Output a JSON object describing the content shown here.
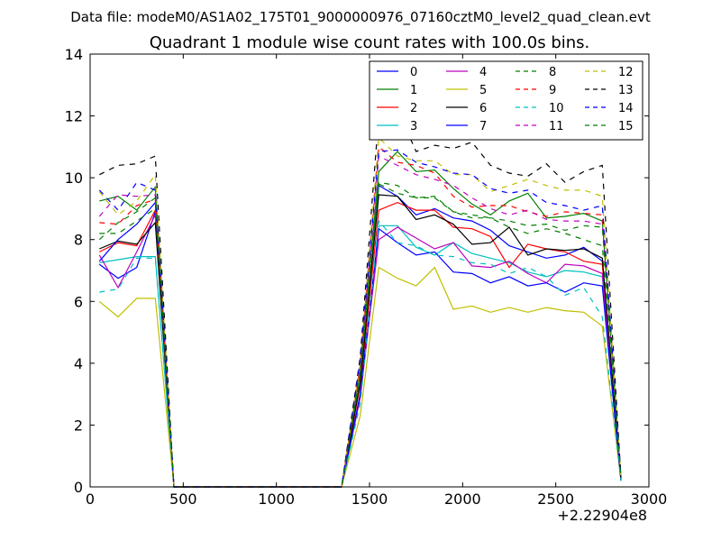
{
  "chart_data": {
    "type": "line",
    "suptitle": "Data file: modeM0/AS1A02_175T01_9000000976_07160cztM0_level2_quad_clean.evt",
    "title": "Quadrant 1 module wise count rates with 100.0s bins.",
    "xlabel": "",
    "ylabel": "",
    "x_offset_label": "+2.22904e8",
    "xlim": [
      0,
      3000
    ],
    "ylim": [
      0,
      14
    ],
    "xticks": [
      0,
      500,
      1000,
      1500,
      2000,
      2500,
      3000
    ],
    "yticks": [
      0,
      2,
      4,
      6,
      8,
      10,
      12,
      14
    ],
    "grid": false,
    "legend_position": "top-right",
    "x": [
      50,
      150,
      250,
      350,
      450,
      1350,
      1450,
      1550,
      1650,
      1750,
      1850,
      1950,
      2050,
      2150,
      2250,
      2350,
      2450,
      2550,
      2650,
      2750,
      2850
    ],
    "series": [
      {
        "name": "0",
        "color": "#0000ff",
        "dash": "solid",
        "values": [
          7.2,
          6.75,
          7.1,
          8.9,
          0,
          0,
          3.0,
          9.75,
          9.4,
          8.8,
          9.0,
          8.7,
          8.6,
          8.3,
          7.8,
          7.6,
          7.4,
          7.5,
          7.75,
          7.3,
          0.2
        ]
      },
      {
        "name": "1",
        "color": "#008000",
        "dash": "solid",
        "values": [
          9.25,
          9.4,
          8.95,
          9.7,
          0,
          0,
          3.7,
          10.2,
          10.85,
          10.2,
          10.25,
          9.65,
          9.15,
          8.8,
          9.25,
          9.5,
          8.7,
          8.75,
          8.85,
          8.6,
          0.3
        ]
      },
      {
        "name": "2",
        "color": "#ff0000",
        "dash": "solid",
        "values": [
          7.6,
          7.9,
          7.8,
          8.95,
          0,
          0,
          3.3,
          8.95,
          9.2,
          8.95,
          8.95,
          8.4,
          8.35,
          8.1,
          7.1,
          7.85,
          7.7,
          7.6,
          7.3,
          7.2,
          0.25
        ]
      },
      {
        "name": "3",
        "color": "#00bfbf",
        "dash": "solid",
        "values": [
          7.25,
          7.35,
          7.45,
          7.45,
          0,
          0,
          2.9,
          8.45,
          8.45,
          7.75,
          7.5,
          7.9,
          7.55,
          7.4,
          7.25,
          6.95,
          6.8,
          7.0,
          6.95,
          6.8,
          0.2
        ]
      },
      {
        "name": "4",
        "color": "#bf00bf",
        "dash": "solid",
        "values": [
          7.5,
          6.45,
          7.6,
          8.8,
          0,
          0,
          2.9,
          8.0,
          8.4,
          8.05,
          7.7,
          7.9,
          7.15,
          7.1,
          7.3,
          6.9,
          6.6,
          7.2,
          7.15,
          6.9,
          0.2
        ]
      },
      {
        "name": "5",
        "color": "#bfbf00",
        "dash": "solid",
        "values": [
          6.0,
          5.5,
          6.1,
          6.1,
          0,
          0,
          2.3,
          7.1,
          6.75,
          6.5,
          7.1,
          5.75,
          5.85,
          5.65,
          5.8,
          5.65,
          5.8,
          5.7,
          5.65,
          5.2,
          0.2
        ]
      },
      {
        "name": "6",
        "color": "#000000",
        "dash": "solid",
        "values": [
          7.7,
          7.95,
          7.85,
          8.55,
          0,
          0,
          3.4,
          9.45,
          9.4,
          8.65,
          8.8,
          8.5,
          7.85,
          7.9,
          8.4,
          7.5,
          7.7,
          7.65,
          7.7,
          7.4,
          0.25
        ]
      },
      {
        "name": "7",
        "color": "#0000ff",
        "dash": "solid",
        "values": [
          7.3,
          8.0,
          8.5,
          9.2,
          0,
          0,
          3.0,
          8.35,
          7.9,
          7.5,
          7.6,
          6.95,
          6.9,
          6.6,
          6.8,
          6.5,
          6.6,
          6.3,
          6.6,
          6.5,
          0.2
        ]
      },
      {
        "name": "8",
        "color": "#008000",
        "dash": "dashed",
        "values": [
          8.2,
          8.2,
          8.6,
          9.0,
          0,
          0,
          3.6,
          9.85,
          9.75,
          9.35,
          9.35,
          8.9,
          8.8,
          8.7,
          8.4,
          8.2,
          8.35,
          8.2,
          8.0,
          7.8,
          0.25
        ]
      },
      {
        "name": "9",
        "color": "#ff0000",
        "dash": "dashed",
        "values": [
          8.55,
          8.5,
          9.1,
          9.3,
          0,
          0,
          3.9,
          11.0,
          10.5,
          10.4,
          10.15,
          9.4,
          9.05,
          9.1,
          9.1,
          8.9,
          8.75,
          8.9,
          8.85,
          8.8,
          0.3
        ]
      },
      {
        "name": "10",
        "color": "#00bfbf",
        "dash": "dashed",
        "values": [
          6.3,
          6.4,
          7.4,
          7.4,
          0,
          0,
          2.7,
          8.6,
          7.9,
          7.8,
          7.5,
          7.45,
          7.25,
          7.2,
          6.9,
          7.1,
          6.8,
          6.2,
          6.45,
          5.5,
          0.2
        ]
      },
      {
        "name": "11",
        "color": "#bf00bf",
        "dash": "dashed",
        "values": [
          8.75,
          9.45,
          9.4,
          9.45,
          0,
          0,
          3.9,
          10.7,
          10.4,
          10.1,
          9.95,
          9.75,
          9.35,
          9.0,
          8.8,
          8.95,
          8.65,
          8.6,
          8.6,
          8.5,
          0.3
        ]
      },
      {
        "name": "12",
        "color": "#bfbf00",
        "dash": "dashed",
        "values": [
          9.55,
          8.8,
          9.25,
          10.1,
          0,
          0,
          4.0,
          11.3,
          10.7,
          10.55,
          10.55,
          10.1,
          10.1,
          9.55,
          9.75,
          9.95,
          9.75,
          9.6,
          9.6,
          9.4,
          0.3
        ]
      },
      {
        "name": "13",
        "color": "#000000",
        "dash": "dashed",
        "values": [
          10.1,
          10.4,
          10.45,
          10.7,
          0,
          0,
          4.2,
          12.05,
          12.2,
          10.85,
          11.05,
          10.95,
          11.15,
          10.4,
          10.15,
          10.05,
          10.45,
          9.85,
          10.2,
          10.4,
          0.3
        ]
      },
      {
        "name": "14",
        "color": "#0000ff",
        "dash": "dashed",
        "values": [
          9.6,
          8.95,
          9.85,
          9.6,
          0,
          0,
          4.1,
          10.85,
          10.9,
          10.5,
          10.35,
          10.15,
          10.1,
          9.65,
          9.5,
          9.6,
          9.2,
          9.1,
          8.95,
          9.1,
          0.3
        ]
      },
      {
        "name": "15",
        "color": "#008000",
        "dash": "dashed",
        "values": [
          8.0,
          8.55,
          8.9,
          9.35,
          0,
          0,
          3.7,
          9.8,
          9.5,
          9.35,
          9.4,
          8.9,
          8.7,
          8.7,
          8.6,
          8.45,
          8.5,
          8.3,
          8.45,
          8.4,
          0.25
        ]
      }
    ]
  }
}
